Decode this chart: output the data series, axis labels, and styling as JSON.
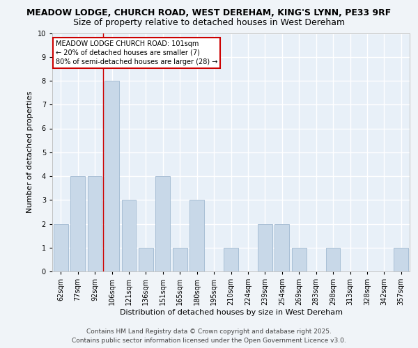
{
  "title_line1": "MEADOW LODGE, CHURCH ROAD, WEST DEREHAM, KING'S LYNN, PE33 9RF",
  "title_line2": "Size of property relative to detached houses in West Dereham",
  "categories": [
    "62sqm",
    "77sqm",
    "92sqm",
    "106sqm",
    "121sqm",
    "136sqm",
    "151sqm",
    "165sqm",
    "180sqm",
    "195sqm",
    "210sqm",
    "224sqm",
    "239sqm",
    "254sqm",
    "269sqm",
    "283sqm",
    "298sqm",
    "313sqm",
    "328sqm",
    "342sqm",
    "357sqm"
  ],
  "values": [
    2,
    4,
    4,
    8,
    3,
    1,
    4,
    1,
    3,
    0,
    1,
    0,
    2,
    2,
    1,
    0,
    1,
    0,
    0,
    0,
    1
  ],
  "bar_color": "#c8d8e8",
  "bar_edgecolor": "#a0b8d0",
  "ref_line_index": 2.5,
  "ref_line_color": "#cc0000",
  "xlabel": "Distribution of detached houses by size in West Dereham",
  "ylabel": "Number of detached properties",
  "ylim": [
    0,
    10
  ],
  "yticks": [
    0,
    1,
    2,
    3,
    4,
    5,
    6,
    7,
    8,
    9,
    10
  ],
  "annotation_text": "MEADOW LODGE CHURCH ROAD: 101sqm\n← 20% of detached houses are smaller (7)\n80% of semi-detached houses are larger (28) →",
  "annotation_box_color": "#ffffff",
  "annotation_box_edgecolor": "#cc0000",
  "footer_line1": "Contains HM Land Registry data © Crown copyright and database right 2025.",
  "footer_line2": "Contains public sector information licensed under the Open Government Licence v3.0.",
  "bg_color": "#e8f0f8",
  "grid_color": "#ffffff",
  "fig_bg_color": "#f0f4f8",
  "title_fontsize": 9,
  "axis_label_fontsize": 8,
  "tick_fontsize": 7,
  "annotation_fontsize": 7,
  "footer_fontsize": 6.5
}
